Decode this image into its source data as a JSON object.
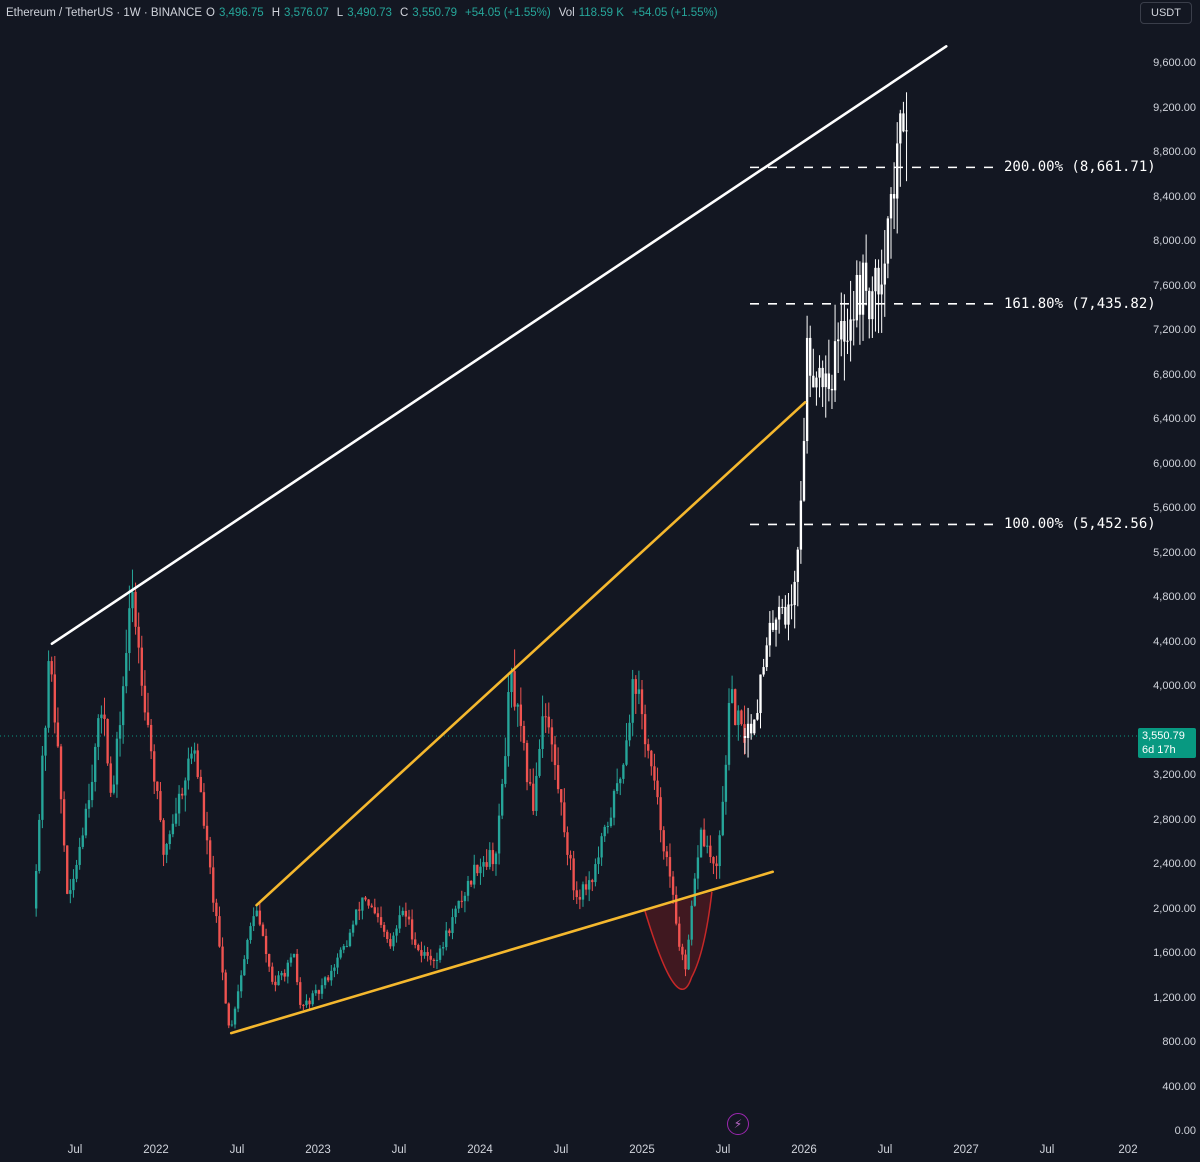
{
  "header": {
    "symbol": "Ethereum / TetherUS · 1W · BINANCE",
    "open_label": "O",
    "open": "3,496.75",
    "high_label": "H",
    "high": "3,576.07",
    "low_label": "L",
    "low": "3,490.73",
    "close_label": "C",
    "close": "3,550.79",
    "change": "+54.05 (+1.55%)",
    "vol_label": "Vol",
    "volume": "118.59 K",
    "vol_change": "+54.05 (+1.55%)"
  },
  "currency": "USDT",
  "price_badge": {
    "price": "3,550.79",
    "countdown": "6d 17h"
  },
  "colors": {
    "background": "#131722",
    "up": "#26a69a",
    "down": "#ef5350",
    "projection": "#ffffff",
    "trendline": "#f5b82e",
    "cup": "#b71c1c"
  },
  "icons": {
    "alert": "lightning-icon"
  },
  "chart_data": {
    "type": "candlestick",
    "y_axis": {
      "ylim": [
        0,
        9800
      ],
      "ticks": [
        "9,600.00",
        "9,200.00",
        "8,800.00",
        "8,400.00",
        "8,000.00",
        "7,600.00",
        "7,200.00",
        "6,800.00",
        "6,400.00",
        "6,000.00",
        "5,600.00",
        "5,200.00",
        "4,800.00",
        "4,400.00",
        "4,000.00",
        "3,200.00",
        "2,800.00",
        "2,400.00",
        "2,000.00",
        "1,600.00",
        "1,200.00",
        "800.00",
        "400.00",
        "0.00"
      ]
    },
    "x_axis": {
      "ticks": [
        "Jul",
        "2022",
        "Jul",
        "2023",
        "Jul",
        "2024",
        "Jul",
        "2025",
        "Jul",
        "2026",
        "Jul",
        "2027",
        "Jul",
        "202"
      ]
    },
    "history_keypoints": [
      [
        "2021-04-01",
        2000
      ],
      [
        "2021-05-10",
        4350
      ],
      [
        "2021-06-20",
        2000
      ],
      [
        "2021-08-15",
        3300
      ],
      [
        "2021-09-07",
        3900
      ],
      [
        "2021-09-25",
        2900
      ],
      [
        "2021-11-10",
        4860
      ],
      [
        "2022-01-20",
        2500
      ],
      [
        "2022-03-30",
        3480
      ],
      [
        "2022-05-15",
        2000
      ],
      [
        "2022-06-18",
        880
      ],
      [
        "2022-08-14",
        2030
      ],
      [
        "2022-09-25",
        1300
      ],
      [
        "2022-11-10",
        1550
      ],
      [
        "2022-11-25",
        1100
      ],
      [
        "2023-01-05",
        1250
      ],
      [
        "2023-03-10",
        1700
      ],
      [
        "2023-04-16",
        2130
      ],
      [
        "2023-06-15",
        1650
      ],
      [
        "2023-07-14",
        2000
      ],
      [
        "2023-08-20",
        1600
      ],
      [
        "2023-10-01",
        1550
      ],
      [
        "2023-10-22",
        1800
      ],
      [
        "2023-12-28",
        2400
      ],
      [
        "2024-02-10",
        2500
      ],
      [
        "2024-03-12",
        4090
      ],
      [
        "2024-05-01",
        2900
      ],
      [
        "2024-05-26",
        3900
      ],
      [
        "2024-08-05",
        2100
      ],
      [
        "2024-09-15",
        2300
      ],
      [
        "2024-11-15",
        3200
      ],
      [
        "2024-12-16",
        4100
      ],
      [
        "2025-02-20",
        2600
      ],
      [
        "2025-04-09",
        1380
      ],
      [
        "2025-05-13",
        2700
      ],
      [
        "2025-06-20",
        2300
      ],
      [
        "2025-07-20",
        3900
      ],
      [
        "2025-08-15",
        3551
      ]
    ],
    "projection_keypoints": [
      [
        "2025-08-15",
        3551
      ],
      [
        "2025-09-10",
        3700
      ],
      [
        "2025-10-10",
        4300
      ],
      [
        "2025-11-05",
        4800
      ],
      [
        "2025-12-01",
        4600
      ],
      [
        "2025-12-25",
        5500
      ],
      [
        "2026-01-08",
        7000
      ],
      [
        "2026-01-20",
        6900
      ],
      [
        "2026-03-01",
        6800
      ],
      [
        "2026-04-10",
        7300
      ],
      [
        "2026-05-10",
        7600
      ],
      [
        "2026-06-10",
        7450
      ],
      [
        "2026-07-10",
        8200
      ],
      [
        "2026-08-01",
        8660
      ],
      [
        "2026-08-15",
        9280
      ]
    ],
    "fib_levels": [
      {
        "label": "200.00% (8,661.71)",
        "value": 8661.71
      },
      {
        "label": "161.80% (7,435.82)",
        "value": 7435.82
      },
      {
        "label": "100.00% (5,452.56)",
        "value": 5452.56
      }
    ],
    "trendlines": [
      {
        "name": "upper-resistance",
        "color": "#ffffff",
        "from": [
          "2021-05-10",
          4380
        ],
        "to": [
          "2026-11-15",
          9750
        ]
      },
      {
        "name": "yellow-upper",
        "color": "#f5b82e",
        "from": [
          "2022-08-14",
          2030
        ],
        "to": [
          "2026-01-01",
          6550
        ]
      },
      {
        "name": "yellow-support",
        "color": "#f5b82e",
        "from": [
          "2022-06-18",
          880
        ],
        "to": [
          "2025-10-20",
          2330
        ]
      }
    ],
    "last_price": 3550.79
  }
}
